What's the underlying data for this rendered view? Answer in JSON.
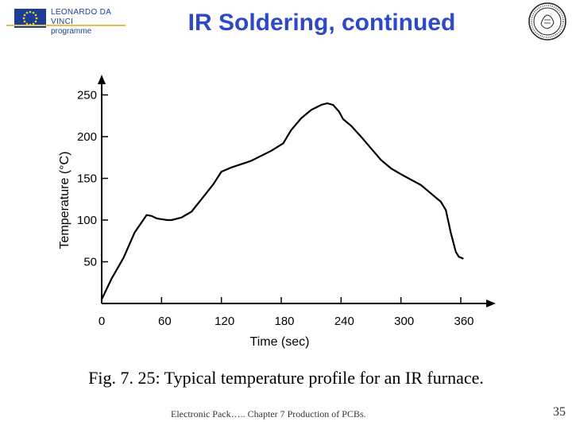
{
  "header": {
    "logo_line1": "LEONARDO DA VINCI",
    "logo_line2": "programme",
    "title": "IR Soldering, continued"
  },
  "chart_data": {
    "type": "line",
    "xlabel": "Time (sec)",
    "ylabel": "Temperature (°C)",
    "xlim": [
      0,
      390
    ],
    "ylim": [
      0,
      260
    ],
    "xticks": [
      0,
      60,
      120,
      180,
      240,
      300,
      360
    ],
    "yticks": [
      50,
      100,
      150,
      200,
      250
    ],
    "grid": false,
    "series": [
      {
        "x": [
          0,
          10,
          22,
          33,
          45,
          50,
          55,
          60,
          66,
          70,
          80,
          90,
          100,
          112,
          120,
          130,
          150,
          170,
          182,
          190,
          200,
          210,
          220,
          226,
          232,
          238,
          242,
          250,
          260,
          270,
          280,
          290,
          300,
          320,
          335,
          340,
          345,
          350,
          355,
          358,
          362
        ],
        "y": [
          5,
          30,
          55,
          85,
          106,
          105,
          102,
          101,
          100,
          100,
          103,
          110,
          125,
          143,
          158,
          163,
          171,
          183,
          192,
          208,
          222,
          232,
          238,
          240,
          238,
          230,
          221,
          213,
          200,
          186,
          172,
          162,
          155,
          142,
          127,
          122,
          112,
          85,
          62,
          56,
          54
        ]
      }
    ]
  },
  "caption": "Fig. 7. 25: Typical temperature profile for an IR furnace.",
  "footer": {
    "text": "Electronic Pack….. Chapter 7 Production of PCBs.",
    "page": "35"
  }
}
